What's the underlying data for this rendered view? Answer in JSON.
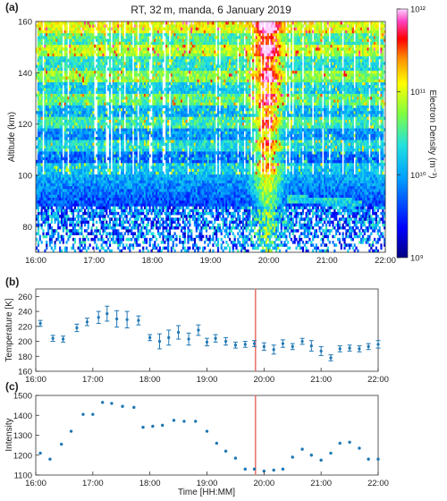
{
  "panels": {
    "a": {
      "letter": "(a)",
      "title": "RT, 32 m, manda, 6 January 2019",
      "ylabel": "Altitude (km)",
      "colorbar_label": "Electron Density (m⁻³)",
      "colorbar_ticks": [
        "10⁹",
        "10¹⁰",
        "10¹¹",
        "10¹²"
      ],
      "xticks": [
        "16:00",
        "17:00",
        "18:00",
        "19:00",
        "20:00",
        "21:00",
        "22:00"
      ],
      "yticks": [
        "80",
        "100",
        "120",
        "140",
        "160"
      ]
    },
    "b": {
      "letter": "(b)",
      "ylabel": "Temperature [K]",
      "xticks": [
        "16:00",
        "17:00",
        "18:00",
        "19:00",
        "20:00",
        "21:00",
        "22:00"
      ],
      "yticks": [
        "160",
        "180",
        "200",
        "220",
        "240",
        "260"
      ]
    },
    "c": {
      "letter": "(c)",
      "ylabel": "Intensity",
      "xlabel": "Time [HH:MM]",
      "xticks": [
        "16:00",
        "17:00",
        "18:00",
        "19:00",
        "20:00",
        "21:00",
        "22:00"
      ],
      "yticks": [
        "1100",
        "1200",
        "1300",
        "1400",
        "1500"
      ]
    }
  },
  "colors": {
    "marker": "#1f77b4",
    "event_line": "#e8776f"
  },
  "chart_data": [
    {
      "type": "heatmap",
      "title": "RT, 32 m, manda, 6 January 2019",
      "xlabel": "",
      "ylabel": "Altitude (km)",
      "xlim": [
        16.0,
        22.0
      ],
      "ylim": [
        70,
        160
      ],
      "color_scale": "log",
      "clim": [
        1000000000.0,
        1000000000000.0
      ],
      "colorbar_label": "Electron Density (m⁻³)",
      "colormap": "jet",
      "grid": false
    },
    {
      "type": "scatter",
      "xlabel": "",
      "ylabel": "Temperature [K]",
      "xlim": [
        16.0,
        22.0
      ],
      "ylim": [
        160,
        270
      ],
      "grid": false,
      "event_time": 19.85,
      "x": [
        16.08,
        16.3,
        16.48,
        16.72,
        16.9,
        17.1,
        17.25,
        17.42,
        17.6,
        17.8,
        18.0,
        18.17,
        18.33,
        18.5,
        18.68,
        18.85,
        19.0,
        19.15,
        19.33,
        19.5,
        19.67,
        19.83,
        20.0,
        20.17,
        20.33,
        20.5,
        20.67,
        20.83,
        21.0,
        21.17,
        21.33,
        21.5,
        21.67,
        21.83,
        22.0
      ],
      "y": [
        224,
        204,
        203,
        218,
        226,
        232,
        237,
        230,
        229,
        228,
        205,
        200,
        205,
        212,
        203,
        215,
        199,
        204,
        200,
        195,
        196,
        197,
        193,
        189,
        197,
        193,
        200,
        194,
        187,
        178,
        190,
        191,
        190,
        193,
        196
      ],
      "yerr": [
        4,
        4,
        4,
        5,
        5,
        8,
        10,
        11,
        11,
        6,
        4,
        10,
        10,
        9,
        8,
        7,
        5,
        5,
        5,
        4,
        4,
        4,
        5,
        6,
        5,
        4,
        4,
        7,
        6,
        4,
        4,
        4,
        4,
        4,
        5
      ]
    },
    {
      "type": "scatter",
      "xlabel": "Time [HH:MM]",
      "ylabel": "Intensity",
      "xlim": [
        16.0,
        22.0
      ],
      "ylim": [
        1100,
        1500
      ],
      "grid": false,
      "event_time": 19.85,
      "x": [
        16.08,
        16.25,
        16.45,
        16.62,
        16.83,
        17.0,
        17.17,
        17.33,
        17.52,
        17.72,
        17.88,
        18.05,
        18.22,
        18.42,
        18.6,
        18.8,
        19.0,
        19.17,
        19.33,
        19.5,
        19.67,
        19.83,
        20.0,
        20.17,
        20.33,
        20.5,
        20.67,
        20.83,
        21.0,
        21.17,
        21.33,
        21.5,
        21.67,
        21.83,
        22.0
      ],
      "y": [
        1210,
        1180,
        1255,
        1320,
        1405,
        1405,
        1465,
        1460,
        1445,
        1440,
        1340,
        1345,
        1350,
        1375,
        1370,
        1370,
        1320,
        1260,
        1220,
        1185,
        1130,
        1130,
        1120,
        1125,
        1130,
        1190,
        1230,
        1200,
        1175,
        1210,
        1260,
        1265,
        1235,
        1180,
        1180
      ]
    }
  ]
}
